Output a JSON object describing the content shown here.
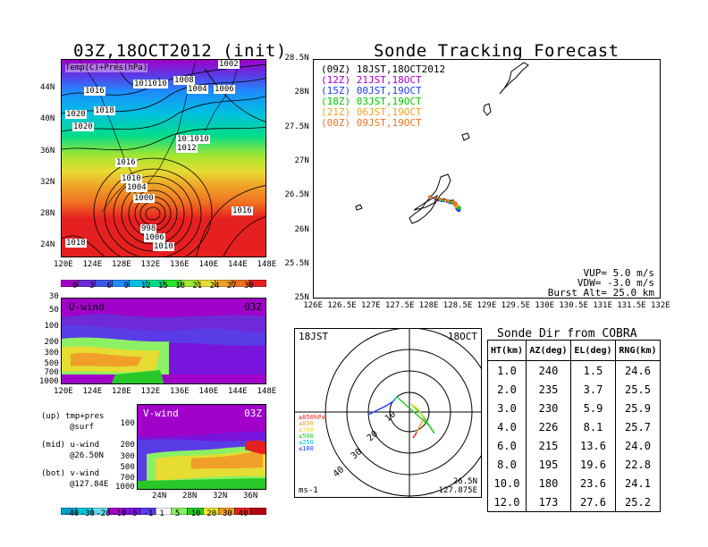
{
  "left": {
    "title": "03Z,18OCT2012 (init)",
    "map": {
      "overlay_label": "Temp(C)+Pres(hPa)",
      "lat_labels": [
        "44N",
        "40N",
        "36N",
        "32N",
        "28N",
        "24N"
      ],
      "lon_labels": [
        "120E",
        "124E",
        "128E",
        "132E",
        "136E",
        "140E",
        "144E",
        "148E"
      ],
      "isobar_labels": [
        "1002",
        "1014",
        "2",
        "1010",
        "1008",
        "1016",
        "1006",
        "1004",
        "1020",
        "1018",
        "1020",
        "1014",
        "1010",
        "1012",
        "1016",
        "1010",
        "1004",
        "1000",
        "1016",
        "998",
        "1006",
        "1010",
        "1018"
      ],
      "colorbar_labels": [
        "0",
        "3",
        "6",
        "9",
        "12",
        "15",
        "18",
        "21",
        "24",
        "27",
        "30"
      ],
      "colorbar_colors": [
        "#a000c8",
        "#6e2ad8",
        "#3c5ae8",
        "#1e8cff",
        "#00c0e0",
        "#00dc8c",
        "#28e628",
        "#a0e632",
        "#e6dc32",
        "#f0a028",
        "#f07020",
        "#e62020"
      ]
    },
    "uwind": {
      "label": "U-wind",
      "time": "03Z",
      "y_labels": [
        "30",
        "50",
        "100",
        "200",
        "300",
        "500",
        "700",
        "1000"
      ],
      "x_labels": [
        "120E",
        "124E",
        "128E",
        "132E",
        "136E",
        "140E",
        "144E",
        "148E"
      ]
    },
    "vwind": {
      "label": "V-wind",
      "time": "03Z",
      "y_labels": [
        "100",
        "200",
        "300",
        "500",
        "700",
        "1000"
      ],
      "x_labels": [
        "24N",
        "28N",
        "32N",
        "36N"
      ]
    },
    "notes": [
      "(up) tmp+pres",
      "@surf",
      "(mid) u-wind",
      "@26.50N",
      "(bot) v-wind",
      "@127.84E"
    ],
    "wind_colorbar_labels": [
      "-40",
      "-30",
      "-20",
      "-10",
      "-5",
      "-1",
      "1",
      "5",
      "10",
      "20",
      "30",
      "40"
    ],
    "wind_colorbar_colors": [
      "#00a0c8",
      "#00c8dc",
      "#64dcf0",
      "#a000c8",
      "#7814dc",
      "#5a3ce6",
      "#ffffff",
      "#8cf064",
      "#28c828",
      "#f0e632",
      "#f0a028",
      "#e62020",
      "#b40014"
    ]
  },
  "right": {
    "title": "Sonde Tracking Forecast",
    "legend": [
      {
        "text": "(09Z) 18JST,18OCT2012",
        "color": "#000000"
      },
      {
        "text": "(12Z) 21JST,18OCT",
        "color": "#a000c8"
      },
      {
        "text": "(15Z) 00JST,19OCT",
        "color": "#1e3cff"
      },
      {
        "text": "(18Z) 03JST,19OCT",
        "color": "#00c800"
      },
      {
        "text": "(21Z) 06JST,19OCT",
        "color": "#f0a028"
      },
      {
        "text": "(00Z) 09JST,19OCT",
        "color": "#f07020"
      }
    ],
    "lat_labels": [
      "28.5N",
      "28N",
      "27.5N",
      "27N",
      "26.5N",
      "26N",
      "25.5N",
      "25N"
    ],
    "lon_labels": [
      "126E",
      "126.5E",
      "127E",
      "127.5E",
      "128E",
      "128.5E",
      "129E",
      "129.5E",
      "130E",
      "130.5E",
      "131E",
      "131.5E",
      "132E"
    ],
    "params": [
      "VUP=  5.0  m/s",
      "VDW= -3.0  m/s",
      "Burst Alt= 25.0  km"
    ]
  },
  "polar": {
    "time": "18JST",
    "date": "18OCT",
    "unit": "ms-1",
    "loc_lat": "26.5N",
    "loc_lon": "127.875E",
    "ring_labels": [
      "10",
      "20",
      "30",
      "40"
    ],
    "level_legend": [
      {
        "text": "≥850hPa",
        "color": "#e62020"
      },
      {
        "text": "≤850",
        "color": "#f0a028"
      },
      {
        "text": "≤700",
        "color": "#e6dc32"
      },
      {
        "text": "≤500",
        "color": "#28c828"
      },
      {
        "text": "≤250",
        "color": "#00c0e0"
      },
      {
        "text": "≤100",
        "color": "#1e3cff"
      }
    ]
  },
  "table": {
    "title": "Sonde Dir from COBRA",
    "headers": [
      "HT(km)",
      "AZ(deg)",
      "EL(deg)",
      "RNG(km)"
    ]
  },
  "chart_data": [
    {
      "type": "table",
      "title": "Sonde Dir from COBRA",
      "columns": [
        "HT(km)",
        "AZ(deg)",
        "EL(deg)",
        "RNG(km)"
      ],
      "rows": [
        [
          "1.0",
          "240",
          "1.5",
          "24.6"
        ],
        [
          "2.0",
          "235",
          "3.7",
          "25.5"
        ],
        [
          "3.0",
          "230",
          "5.9",
          "25.9"
        ],
        [
          "4.0",
          "226",
          "8.1",
          "25.7"
        ],
        [
          "6.0",
          "215",
          "13.6",
          "24.0"
        ],
        [
          "8.0",
          "195",
          "19.6",
          "22.8"
        ],
        [
          "10.0",
          "180",
          "23.6",
          "24.1"
        ],
        [
          "12.0",
          "173",
          "27.6",
          "25.2"
        ]
      ]
    },
    {
      "type": "line",
      "title": "Sonde Tracking Forecast",
      "xlabel": "",
      "ylabel": "",
      "xlim": [
        126,
        132
      ],
      "ylim": [
        25,
        28.5
      ],
      "series": [
        {
          "name": "(09Z) 18JST,18OCT2012",
          "color": "#000000",
          "x": [
            128.0,
            128.1,
            128.25,
            128.4,
            128.45
          ],
          "y": [
            26.5,
            26.47,
            26.46,
            26.44,
            26.38
          ]
        },
        {
          "name": "(12Z) 21JST,18OCT",
          "color": "#a000c8",
          "x": [
            128.0,
            128.15,
            128.3,
            128.42,
            128.48
          ],
          "y": [
            26.5,
            26.45,
            26.43,
            26.4,
            26.33
          ]
        },
        {
          "name": "(15Z) 00JST,19OCT",
          "color": "#1e3cff",
          "x": [
            128.0,
            128.2,
            128.35,
            128.45,
            128.5
          ],
          "y": [
            26.5,
            26.44,
            26.41,
            26.38,
            26.31
          ]
        },
        {
          "name": "(18Z) 03JST,19OCT",
          "color": "#00c800",
          "x": [
            128.0,
            128.2,
            128.35,
            128.45,
            128.5
          ],
          "y": [
            26.5,
            26.45,
            26.42,
            26.39,
            26.34
          ]
        },
        {
          "name": "(21Z) 06JST,19OCT",
          "color": "#f0a028",
          "x": [
            128.0,
            128.18,
            128.32,
            128.42,
            128.46
          ],
          "y": [
            26.5,
            26.46,
            26.44,
            26.42,
            26.37
          ]
        },
        {
          "name": "(00Z) 09JST,19OCT",
          "color": "#f07020",
          "x": [
            128.0,
            128.18,
            128.3,
            128.4,
            128.44
          ],
          "y": [
            26.5,
            26.47,
            26.45,
            26.43,
            26.4
          ]
        }
      ]
    }
  ]
}
